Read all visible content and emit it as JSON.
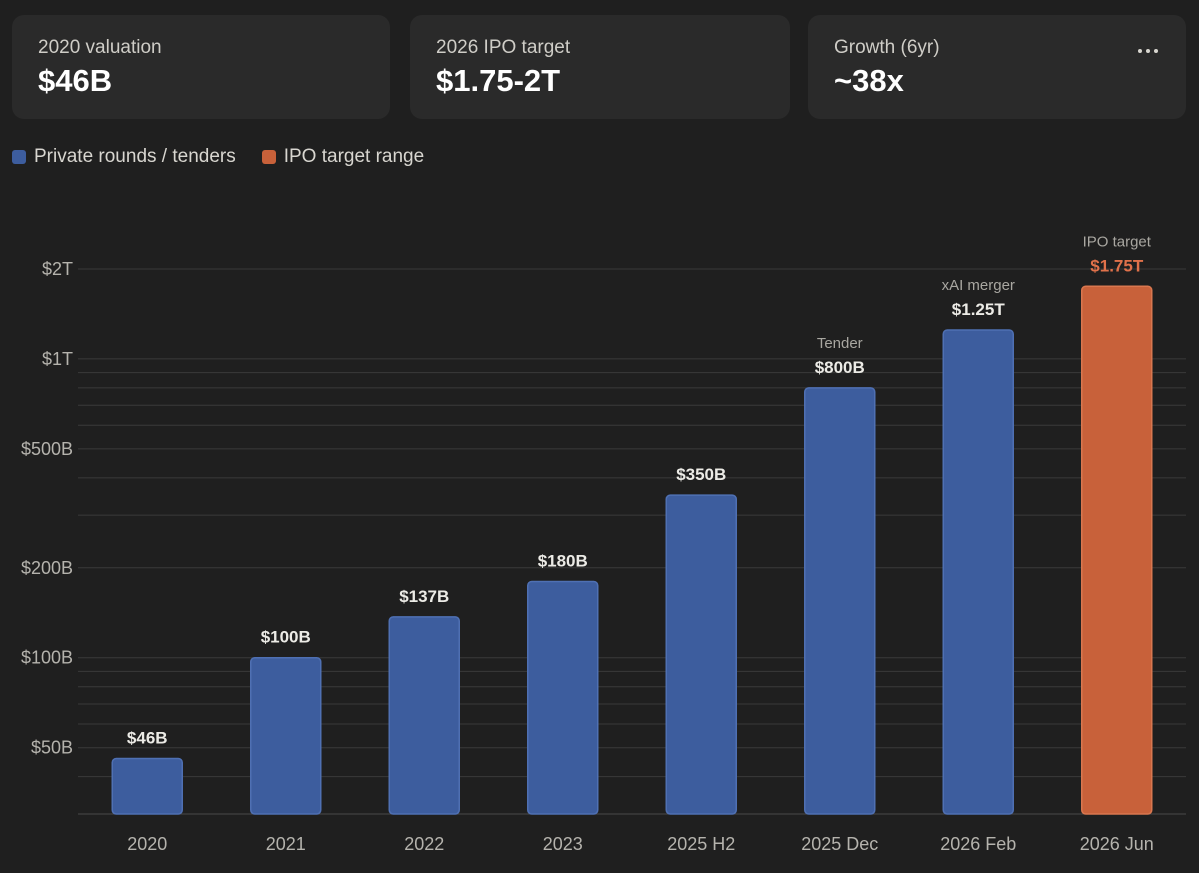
{
  "stats": [
    {
      "label": "2020 valuation",
      "value": "$46B"
    },
    {
      "label": "2026 IPO target",
      "value": "$1.75-2T"
    },
    {
      "label": "Growth (6yr)",
      "value": "~38x"
    }
  ],
  "more_icon": "more-horizontal-icon",
  "legend": [
    {
      "label": "Private rounds / tenders",
      "color": "#3d5d9e"
    },
    {
      "label": "IPO target range",
      "color": "#c8613a"
    }
  ],
  "chart_data": {
    "type": "bar",
    "scale": "log",
    "ylim": [
      30,
      2500
    ],
    "y_ticks": [
      {
        "value": 50,
        "label": "$50B"
      },
      {
        "value": 100,
        "label": "$100B"
      },
      {
        "value": 200,
        "label": "$200B"
      },
      {
        "value": 500,
        "label": "$500B"
      },
      {
        "value": 1000,
        "label": "$1T"
      },
      {
        "value": 2000,
        "label": "$2T"
      }
    ],
    "grid": true,
    "categories": [
      "2020",
      "2021",
      "2022",
      "2023",
      "2025 H2",
      "2025 Dec",
      "2026 Feb",
      "2026 Jun"
    ],
    "series": [
      {
        "name": "Private rounds / tenders",
        "color": "#3d5d9e",
        "values": [
          46,
          100,
          137,
          180,
          350,
          800,
          1250,
          null
        ]
      },
      {
        "name": "IPO target range",
        "color": "#c8613a",
        "values": [
          null,
          null,
          null,
          null,
          null,
          null,
          null,
          1750
        ]
      }
    ],
    "value_labels": [
      "$46B",
      "$100B",
      "$137B",
      "$180B",
      "$350B",
      "$800B",
      "$1.25T",
      "$1.75T"
    ],
    "annotations": [
      "",
      "",
      "",
      "",
      "",
      "Tender",
      "xAI merger",
      "IPO target"
    ]
  }
}
